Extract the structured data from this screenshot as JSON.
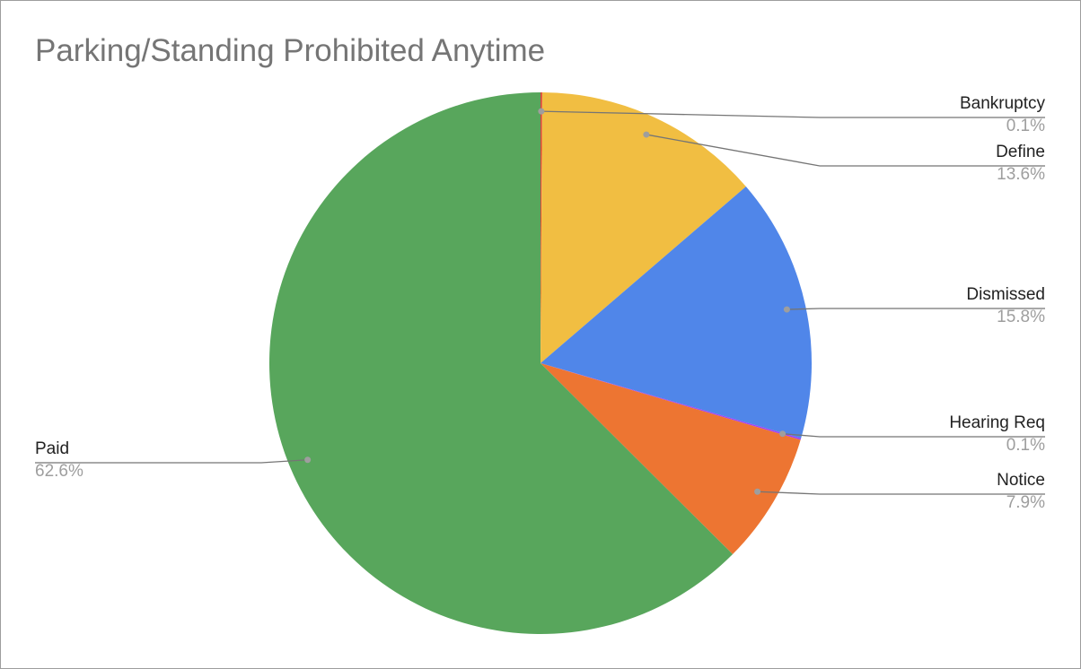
{
  "chart_data": {
    "type": "pie",
    "title": "Parking/Standing Prohibited Anytime",
    "slices": [
      {
        "label": "Bankruptcy",
        "value": 0.1,
        "pct_label": "0.1%",
        "color": "#db4437"
      },
      {
        "label": "Define",
        "value": 13.6,
        "pct_label": "13.6%",
        "color": "#f1be42"
      },
      {
        "label": "Dismissed",
        "value": 15.8,
        "pct_label": "15.8%",
        "color": "#5086e9"
      },
      {
        "label": "Hearing Req",
        "value": 0.1,
        "pct_label": "0.1%",
        "color": "#a142f4"
      },
      {
        "label": "Notice",
        "value": 7.9,
        "pct_label": "7.9%",
        "color": "#ed7532"
      },
      {
        "label": "Paid",
        "value": 62.6,
        "pct_label": "62.6%",
        "color": "#58a65c"
      }
    ],
    "legend": "none",
    "labels": "outside, with leader lines"
  }
}
